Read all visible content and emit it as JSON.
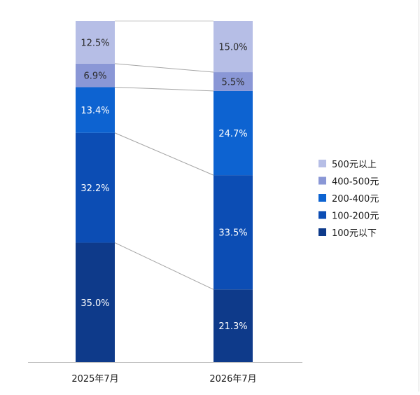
{
  "chart_data": {
    "type": "bar",
    "stacked": true,
    "percent": true,
    "categories": [
      "2025年7月",
      "2026年7月"
    ],
    "series": [
      {
        "name": "100元以下",
        "values": [
          35.0,
          21.3
        ],
        "labels": [
          "35.0%",
          "21.3%"
        ],
        "color": "#0e3a8a"
      },
      {
        "name": "100-200元",
        "values": [
          32.2,
          33.5
        ],
        "labels": [
          "32.2%",
          "33.5%"
        ],
        "color": "#0c4db4"
      },
      {
        "name": "200-400元",
        "values": [
          13.4,
          24.7
        ],
        "labels": [
          "13.4%",
          "24.7%"
        ],
        "color": "#0d63d1"
      },
      {
        "name": "400-500元",
        "values": [
          6.9,
          5.5
        ],
        "labels": [
          "6.9%",
          "5.5%"
        ],
        "color": "#8a97d6"
      },
      {
        "name": "500元以上",
        "values": [
          12.5,
          15.0
        ],
        "labels": [
          "12.5%",
          "15.0%"
        ],
        "color": "#b6bee6"
      }
    ],
    "legend_order": [
      "500元以上",
      "400-500元",
      "200-400元",
      "100-200元",
      "100元以下"
    ],
    "legend_position": "right",
    "series_lines": true,
    "ylim": [
      0,
      100
    ],
    "grid": false
  }
}
